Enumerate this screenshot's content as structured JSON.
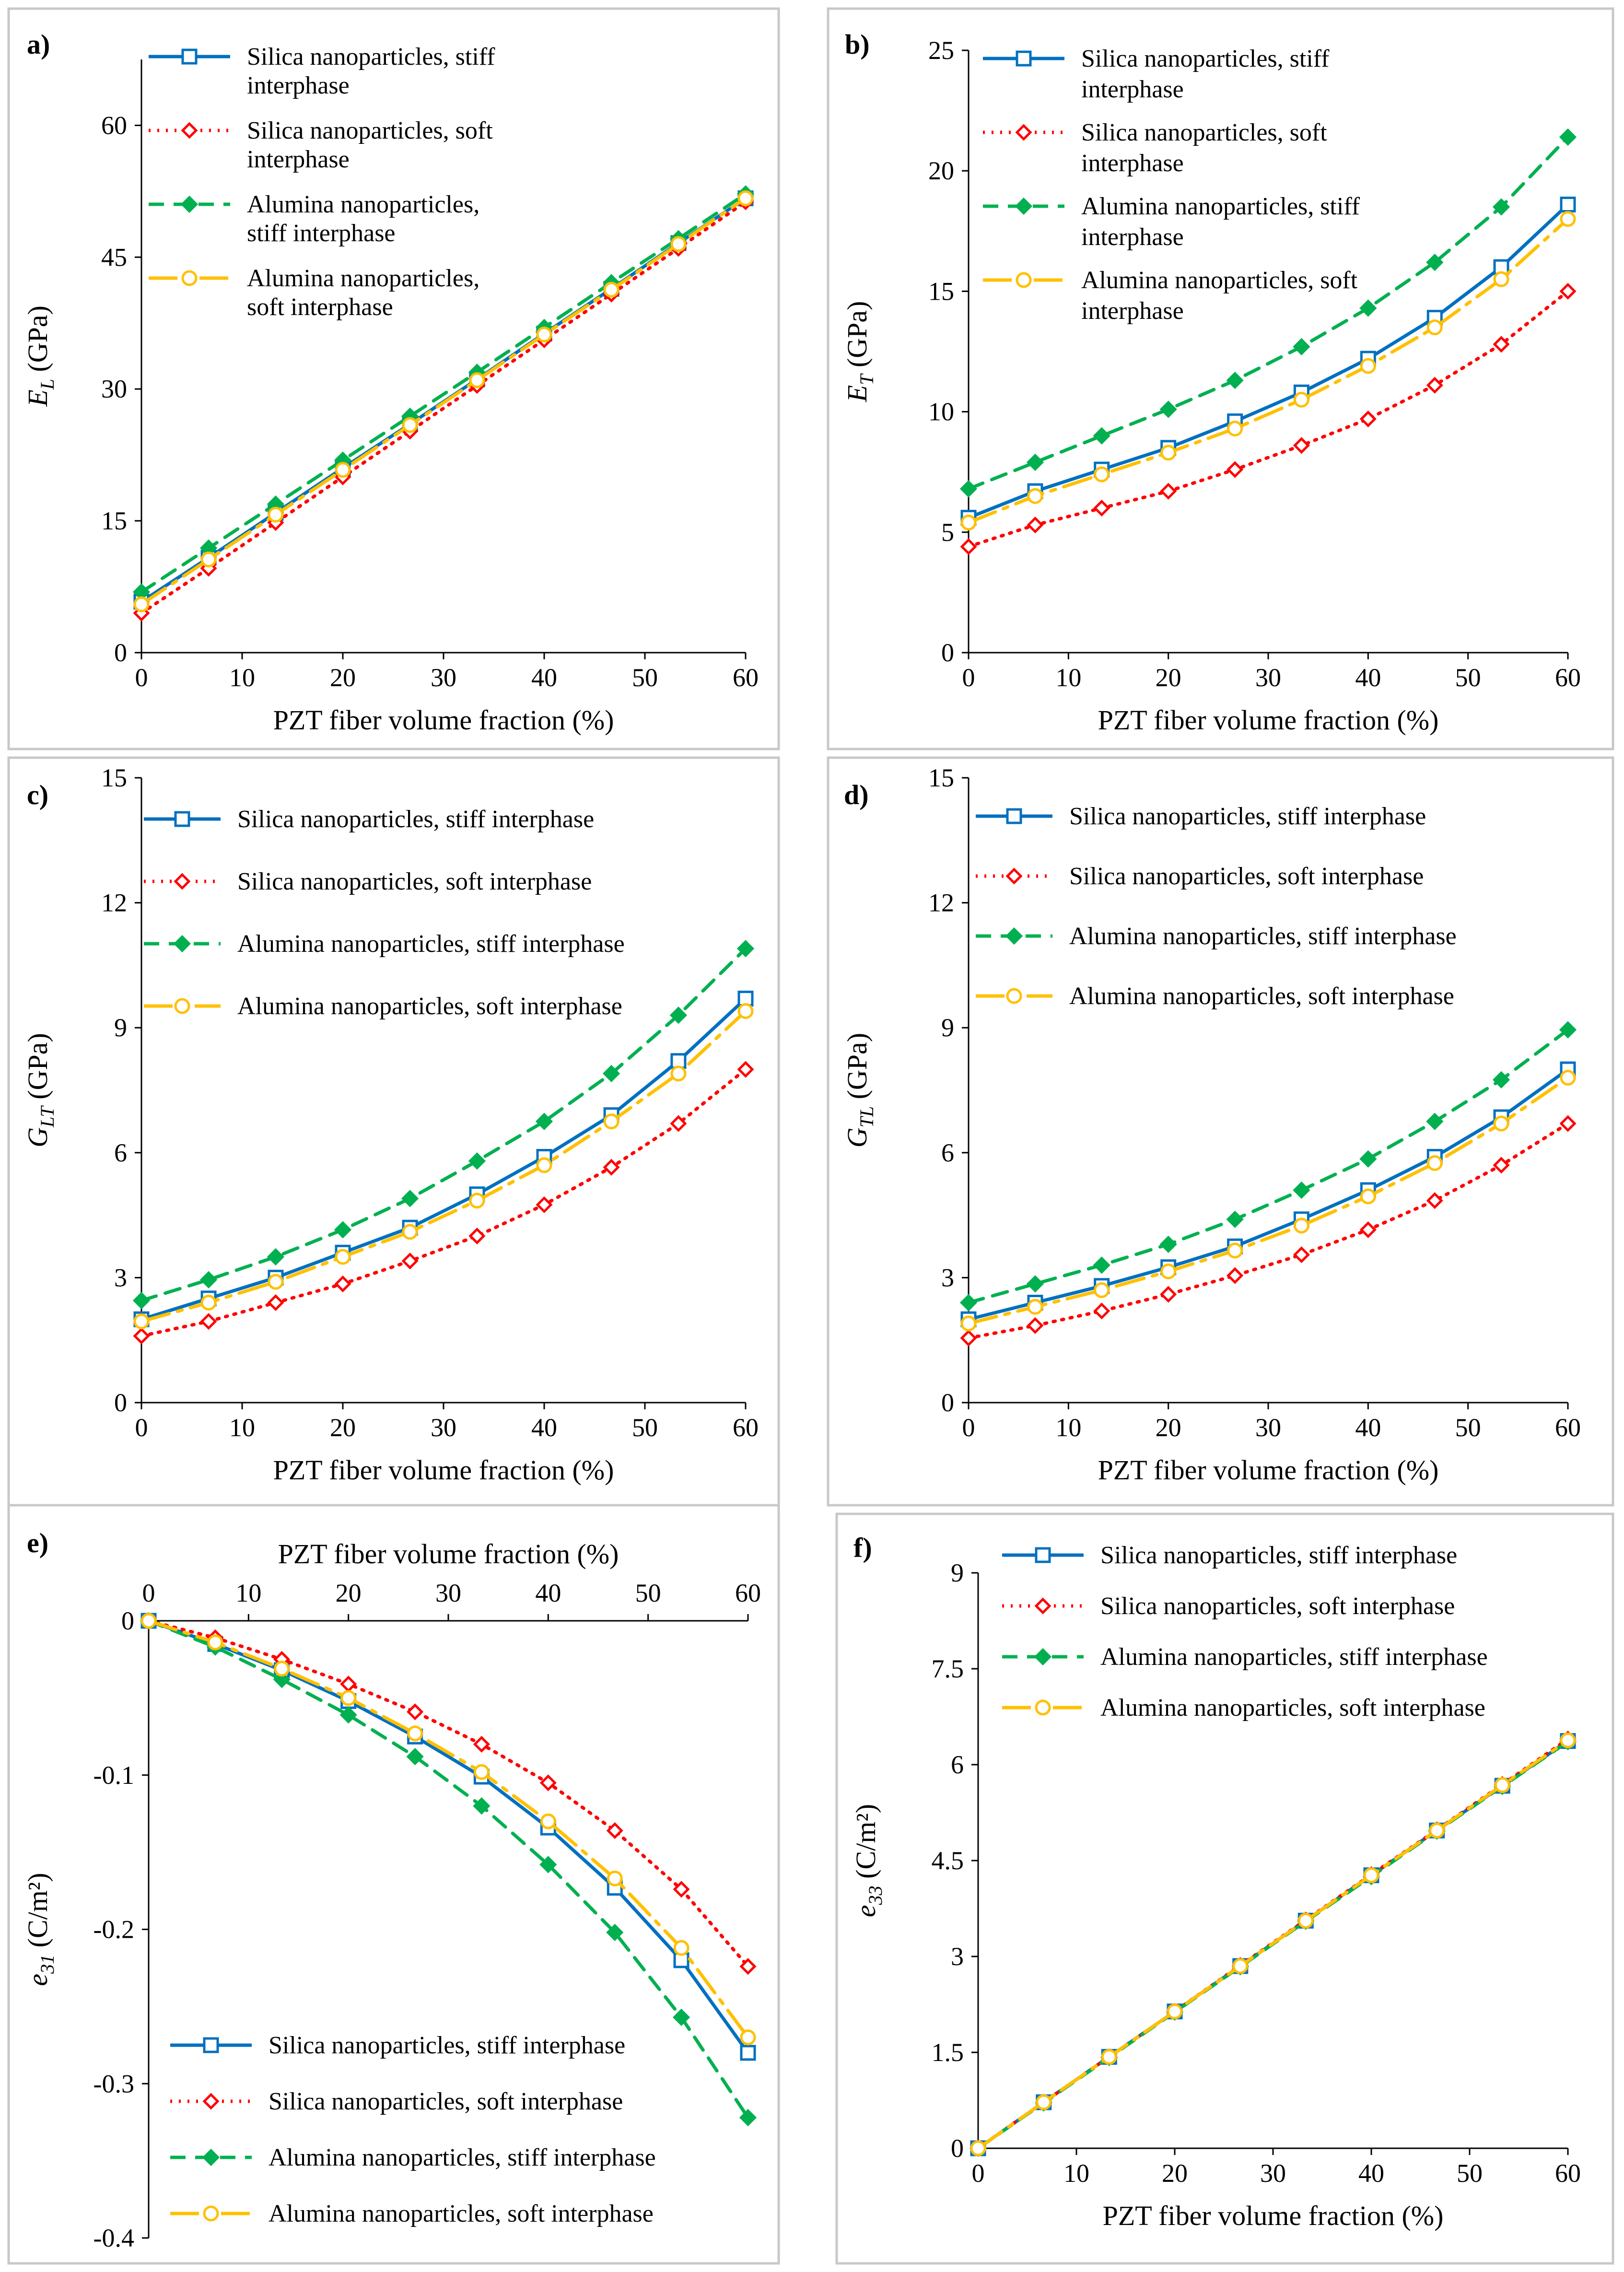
{
  "figure": {
    "panels": [
      "a",
      "b",
      "c",
      "d",
      "e",
      "f"
    ]
  },
  "series_styles": [
    {
      "name": "Silica nanoparticles, stiff interphase",
      "color": "#0070C0",
      "dash": "solid",
      "marker": "square-open"
    },
    {
      "name": "Silica nanoparticles, soft interphase",
      "color": "#FF0000",
      "dash": "dotted",
      "marker": "diamond-open"
    },
    {
      "name": "Alumina nanoparticles, stiff interphase",
      "color": "#00B050",
      "dash": "dashed",
      "marker": "diamond-filled"
    },
    {
      "name": "Alumina nanoparticles, soft interphase",
      "color": "#FFC000",
      "dash": "longdash",
      "marker": "circle-open"
    }
  ],
  "chart_data": [
    {
      "id": "a",
      "panel_label": "a)",
      "type": "line",
      "xlabel": "PZT fiber volume fraction (%)",
      "ylabel_main": "E",
      "ylabel_sub": "L",
      "ylabel_unit": " (GPa)",
      "x_axis_position": "bottom",
      "xlim": [
        0,
        60
      ],
      "xticks": [
        0,
        10,
        20,
        30,
        40,
        50,
        60
      ],
      "ylim": [
        0,
        67.5
      ],
      "yticks": [
        0,
        15,
        30,
        45,
        60
      ],
      "tick_labels_x": [
        "0",
        "10",
        "20",
        "30",
        "40",
        "50",
        "60"
      ],
      "tick_labels_y": [
        "0",
        "15",
        "30",
        "45",
        "60"
      ],
      "legend_position": "top-left",
      "legend_lines": [
        [
          "Silica nanoparticles, stiff",
          "interphase"
        ],
        [
          "Silica nanoparticles, soft",
          "interphase"
        ],
        [
          "Alumina nanoparticles,",
          "stiff interphase"
        ],
        [
          "Alumina nanoparticles,",
          "soft interphase"
        ]
      ],
      "x": [
        0,
        6.67,
        13.33,
        20,
        26.67,
        33.33,
        40,
        46.67,
        53.33,
        60
      ],
      "series": [
        {
          "name": "Silica nanoparticles, stiff interphase",
          "values": [
            5.8,
            10.8,
            15.9,
            21.0,
            26.0,
            31.1,
            36.3,
            41.4,
            46.6,
            51.7
          ]
        },
        {
          "name": "Silica nanoparticles, soft interphase",
          "values": [
            4.5,
            9.6,
            14.8,
            20.0,
            25.2,
            30.4,
            35.6,
            40.8,
            46.0,
            51.3
          ]
        },
        {
          "name": "Alumina nanoparticles, stiff interphase",
          "values": [
            6.9,
            11.9,
            16.9,
            21.9,
            26.9,
            31.9,
            37.0,
            42.1,
            47.1,
            52.2
          ]
        },
        {
          "name": "Alumina nanoparticles, soft interphase",
          "values": [
            5.5,
            10.6,
            15.7,
            20.8,
            25.9,
            31.0,
            36.2,
            41.3,
            46.5,
            51.7
          ]
        }
      ]
    },
    {
      "id": "b",
      "panel_label": "b)",
      "type": "line",
      "xlabel": "PZT fiber volume fraction (%)",
      "ylabel_main": "E",
      "ylabel_sub": "T",
      "ylabel_unit": " (GPa)",
      "x_axis_position": "bottom",
      "xlim": [
        0,
        60
      ],
      "xticks": [
        0,
        10,
        20,
        30,
        40,
        50,
        60
      ],
      "ylim": [
        0,
        25
      ],
      "yticks": [
        0,
        5,
        10,
        15,
        20,
        25
      ],
      "tick_labels_x": [
        "0",
        "10",
        "20",
        "30",
        "40",
        "50",
        "60"
      ],
      "tick_labels_y": [
        "0",
        "5",
        "10",
        "15",
        "20",
        "25"
      ],
      "legend_position": "top-left",
      "legend_lines": [
        [
          "Silica nanoparticles, stiff",
          "interphase"
        ],
        [
          "Silica nanoparticles, soft",
          "interphase"
        ],
        [
          "Alumina nanoparticles, stiff",
          "interphase"
        ],
        [
          "Alumina nanoparticles, soft",
          "interphase"
        ]
      ],
      "x": [
        0,
        6.67,
        13.33,
        20,
        26.67,
        33.33,
        40,
        46.67,
        53.33,
        60
      ],
      "series": [
        {
          "name": "Silica nanoparticles, stiff interphase",
          "values": [
            5.6,
            6.7,
            7.6,
            8.5,
            9.6,
            10.8,
            12.2,
            13.9,
            16.0,
            18.6
          ]
        },
        {
          "name": "Silica nanoparticles, soft interphase",
          "values": [
            4.4,
            5.3,
            6.0,
            6.7,
            7.6,
            8.6,
            9.7,
            11.1,
            12.8,
            15.0
          ]
        },
        {
          "name": "Alumina nanoparticles, stiff interphase",
          "values": [
            6.8,
            7.9,
            9.0,
            10.1,
            11.3,
            12.7,
            14.3,
            16.2,
            18.5,
            21.4
          ]
        },
        {
          "name": "Alumina nanoparticles, soft interphase",
          "values": [
            5.4,
            6.5,
            7.4,
            8.3,
            9.3,
            10.5,
            11.9,
            13.5,
            15.5,
            18.0
          ]
        }
      ]
    },
    {
      "id": "c",
      "panel_label": "c)",
      "type": "line",
      "xlabel": "PZT fiber volume fraction (%)",
      "ylabel_main": "G",
      "ylabel_sub": "LT",
      "ylabel_unit": " (GPa)",
      "x_axis_position": "bottom",
      "xlim": [
        0,
        60
      ],
      "xticks": [
        0,
        10,
        20,
        30,
        40,
        50,
        60
      ],
      "ylim": [
        0,
        15
      ],
      "yticks": [
        0,
        3,
        6,
        9,
        12,
        15
      ],
      "tick_labels_x": [
        "0",
        "10",
        "20",
        "30",
        "40",
        "50",
        "60"
      ],
      "tick_labels_y": [
        "0",
        "3",
        "6",
        "9",
        "12",
        "15"
      ],
      "legend_position": "top-left",
      "legend_lines": [
        [
          "Silica nanoparticles, stiff interphase"
        ],
        [
          "Silica nanoparticles, soft interphase"
        ],
        [
          "Alumina nanoparticles, stiff interphase"
        ],
        [
          "Alumina nanoparticles, soft interphase"
        ]
      ],
      "x": [
        0,
        6.67,
        13.33,
        20,
        26.67,
        33.33,
        40,
        46.67,
        53.33,
        60
      ],
      "series": [
        {
          "name": "Silica nanoparticles, stiff interphase",
          "values": [
            2.0,
            2.5,
            3.0,
            3.6,
            4.2,
            5.0,
            5.9,
            6.9,
            8.2,
            9.7
          ]
        },
        {
          "name": "Silica nanoparticles, soft interphase",
          "values": [
            1.6,
            1.95,
            2.4,
            2.85,
            3.4,
            4.0,
            4.75,
            5.65,
            6.7,
            8.0
          ]
        },
        {
          "name": "Alumina nanoparticles, stiff interphase",
          "values": [
            2.45,
            2.95,
            3.5,
            4.15,
            4.9,
            5.8,
            6.75,
            7.9,
            9.3,
            10.9
          ]
        },
        {
          "name": "Alumina nanoparticles, soft interphase",
          "values": [
            1.95,
            2.4,
            2.9,
            3.5,
            4.1,
            4.85,
            5.7,
            6.75,
            7.9,
            9.4
          ]
        }
      ]
    },
    {
      "id": "d",
      "panel_label": "d)",
      "type": "line",
      "xlabel": "PZT fiber volume fraction (%)",
      "ylabel_main": "G",
      "ylabel_sub": "TL",
      "ylabel_unit": " (GPa)",
      "x_axis_position": "bottom",
      "xlim": [
        0,
        60
      ],
      "xticks": [
        0,
        10,
        20,
        30,
        40,
        50,
        60
      ],
      "ylim": [
        0,
        15
      ],
      "yticks": [
        0,
        3,
        6,
        9,
        12,
        15
      ],
      "tick_labels_x": [
        "0",
        "10",
        "20",
        "30",
        "40",
        "50",
        "60"
      ],
      "tick_labels_y": [
        "0",
        "3",
        "6",
        "9",
        "12",
        "15"
      ],
      "legend_position": "top-left",
      "legend_lines": [
        [
          "Silica nanoparticles, stiff interphase"
        ],
        [
          "Silica nanoparticles, soft interphase"
        ],
        [
          "Alumina nanoparticles, stiff interphase"
        ],
        [
          "Alumina nanoparticles, soft interphase"
        ]
      ],
      "x": [
        0,
        6.67,
        13.33,
        20,
        26.67,
        33.33,
        40,
        46.67,
        53.33,
        60
      ],
      "series": [
        {
          "name": "Silica nanoparticles, stiff interphase",
          "values": [
            2.0,
            2.4,
            2.8,
            3.25,
            3.75,
            4.4,
            5.1,
            5.9,
            6.85,
            8.0
          ]
        },
        {
          "name": "Silica nanoparticles, soft interphase",
          "values": [
            1.55,
            1.85,
            2.2,
            2.6,
            3.05,
            3.55,
            4.15,
            4.85,
            5.7,
            6.7
          ]
        },
        {
          "name": "Alumina nanoparticles, stiff interphase",
          "values": [
            2.4,
            2.85,
            3.3,
            3.8,
            4.4,
            5.1,
            5.85,
            6.75,
            7.75,
            8.95
          ]
        },
        {
          "name": "Alumina nanoparticles, soft interphase",
          "values": [
            1.9,
            2.3,
            2.7,
            3.15,
            3.65,
            4.25,
            4.95,
            5.75,
            6.7,
            7.8
          ]
        }
      ]
    },
    {
      "id": "e",
      "panel_label": "e)",
      "type": "line",
      "xlabel": "PZT fiber volume fraction (%)",
      "ylabel_main": "e",
      "ylabel_sub": "31",
      "ylabel_unit": " (C/m²)",
      "x_axis_position": "top",
      "xlim": [
        0,
        60
      ],
      "xticks": [
        0,
        10,
        20,
        30,
        40,
        50,
        60
      ],
      "ylim": [
        -0.4,
        0
      ],
      "yticks": [
        0,
        -0.1,
        -0.2,
        -0.3,
        -0.4
      ],
      "tick_labels_x": [
        "0",
        "10",
        "20",
        "30",
        "40",
        "50",
        "60"
      ],
      "tick_labels_y": [
        "0",
        "-0.1",
        "-0.2",
        "-0.3",
        "-0.4"
      ],
      "legend_position": "bottom-left",
      "legend_lines": [
        [
          "Silica nanoparticles, stiff interphase"
        ],
        [
          "Silica nanoparticles, soft interphase"
        ],
        [
          "Alumina nanoparticles, stiff interphase"
        ],
        [
          "Alumina nanoparticles, soft interphase"
        ]
      ],
      "x": [
        0,
        6.67,
        13.33,
        20,
        26.67,
        33.33,
        40,
        46.67,
        53.33,
        60
      ],
      "series": [
        {
          "name": "Silica nanoparticles, stiff interphase",
          "values": [
            0,
            -0.015,
            -0.032,
            -0.052,
            -0.075,
            -0.101,
            -0.134,
            -0.173,
            -0.22,
            -0.28
          ]
        },
        {
          "name": "Silica nanoparticles, soft interphase",
          "values": [
            0,
            -0.011,
            -0.025,
            -0.041,
            -0.059,
            -0.08,
            -0.105,
            -0.136,
            -0.174,
            -0.224
          ]
        },
        {
          "name": "Alumina nanoparticles, stiff interphase",
          "values": [
            0,
            -0.017,
            -0.038,
            -0.061,
            -0.088,
            -0.12,
            -0.158,
            -0.202,
            -0.257,
            -0.322
          ]
        },
        {
          "name": "Alumina nanoparticles, soft interphase",
          "values": [
            0,
            -0.014,
            -0.031,
            -0.05,
            -0.073,
            -0.098,
            -0.13,
            -0.167,
            -0.212,
            -0.27
          ]
        }
      ]
    },
    {
      "id": "f",
      "panel_label": "f)",
      "type": "line",
      "xlabel": "PZT fiber volume fraction (%)",
      "ylabel_main": "e",
      "ylabel_sub": "33",
      "ylabel_unit": " (C/m²)",
      "x_axis_position": "bottom",
      "xlim": [
        0,
        60
      ],
      "xticks": [
        0,
        10,
        20,
        30,
        40,
        50,
        60
      ],
      "ylim": [
        0,
        9
      ],
      "yticks": [
        0,
        1.5,
        3,
        4.5,
        6,
        7.5,
        9
      ],
      "tick_labels_x": [
        "0",
        "10",
        "20",
        "30",
        "40",
        "50",
        "60"
      ],
      "tick_labels_y": [
        "0",
        "1.5",
        "3",
        "4.5",
        "6",
        "7.5",
        "9"
      ],
      "legend_position": "top-left",
      "legend_lines": [
        [
          "Silica nanoparticles, stiff interphase"
        ],
        [
          "Silica nanoparticles, soft interphase"
        ],
        [
          "Alumina nanoparticles, stiff interphase"
        ],
        [
          "Alumina nanoparticles, soft interphase"
        ]
      ],
      "x": [
        0,
        6.67,
        13.33,
        20,
        26.67,
        33.33,
        40,
        46.67,
        53.33,
        60
      ],
      "series": [
        {
          "name": "Silica nanoparticles, stiff interphase",
          "values": [
            0,
            0.72,
            1.43,
            2.14,
            2.85,
            3.56,
            4.27,
            4.97,
            5.67,
            6.37
          ]
        },
        {
          "name": "Silica nanoparticles, soft interphase",
          "values": [
            0,
            0.72,
            1.43,
            2.14,
            2.86,
            3.57,
            4.28,
            4.98,
            5.69,
            6.4
          ]
        },
        {
          "name": "Alumina nanoparticles, stiff interphase",
          "values": [
            0,
            0.71,
            1.42,
            2.13,
            2.84,
            3.55,
            4.25,
            4.96,
            5.66,
            6.36
          ]
        },
        {
          "name": "Alumina nanoparticles, soft interphase",
          "values": [
            0,
            0.72,
            1.43,
            2.14,
            2.85,
            3.56,
            4.27,
            4.97,
            5.68,
            6.38
          ]
        }
      ]
    }
  ]
}
